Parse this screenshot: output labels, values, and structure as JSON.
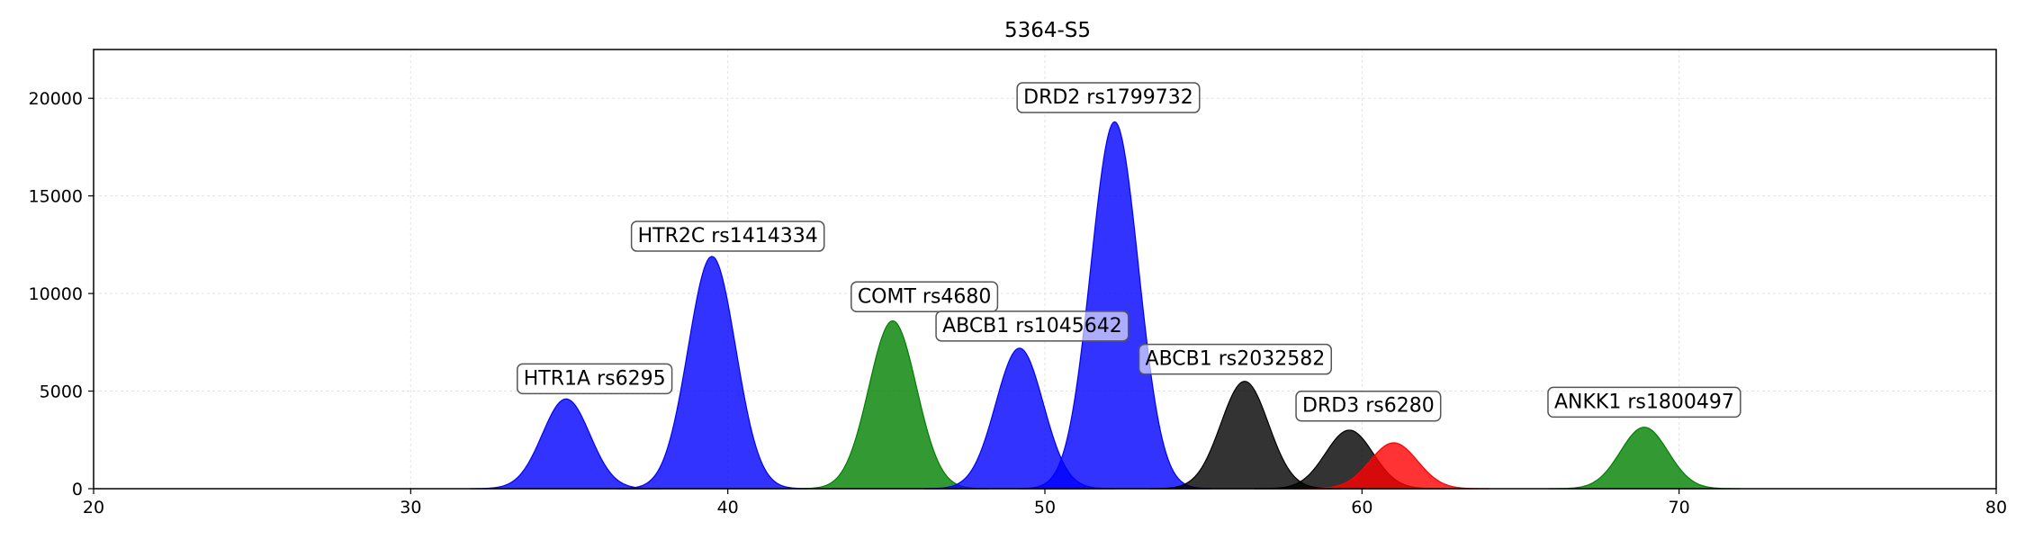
{
  "chart_data": {
    "type": "area",
    "title": "5364-S5",
    "xlabel": "",
    "ylabel": "",
    "xlim": [
      20,
      80
    ],
    "ylim": [
      0,
      22500
    ],
    "xticks": [
      20,
      30,
      40,
      50,
      60,
      70,
      80
    ],
    "yticks": [
      0,
      5000,
      10000,
      15000,
      20000
    ],
    "xtick_labels": [
      "20",
      "30",
      "40",
      "50",
      "60",
      "70",
      "80"
    ],
    "ytick_labels": [
      "0",
      "5000",
      "10000",
      "15000",
      "20000"
    ],
    "grid": true,
    "series": [
      {
        "name": "HTR1A rs6295",
        "color": "#0000ff",
        "peak_x": 34.9,
        "peak_y": 4600,
        "sigma": 0.75
      },
      {
        "name": "HTR2C rs1414334",
        "color": "#0000ff",
        "peak_x": 39.5,
        "peak_y": 11900,
        "sigma": 0.75
      },
      {
        "name": "COMT rs4680",
        "color": "#008000",
        "peak_x": 45.2,
        "peak_y": 8600,
        "sigma": 0.75
      },
      {
        "name": "ABCB1 rs1045642",
        "color": "#0000ff",
        "peak_x": 49.2,
        "peak_y": 7200,
        "sigma": 0.75
      },
      {
        "name": "DRD2 rs1799732",
        "color": "#0000ff",
        "peak_x": 52.2,
        "peak_y": 18800,
        "sigma": 0.75
      },
      {
        "name": "ABCB1 rs2032582",
        "color": "#000000",
        "peak_x": 56.3,
        "peak_y": 5500,
        "sigma": 0.75
      },
      {
        "name": "DRD3 rs6280",
        "color": "#000000",
        "peak_x": 59.6,
        "peak_y": 3000,
        "sigma": 0.75
      },
      {
        "name": "",
        "color": "#ff0000",
        "peak_x": 61.0,
        "peak_y": 2350,
        "sigma": 0.75
      },
      {
        "name": "ANKK1 rs1800497",
        "color": "#008000",
        "peak_x": 68.9,
        "peak_y": 3150,
        "sigma": 0.75
      }
    ],
    "annotations": [
      {
        "text": "HTR1A rs6295",
        "x": 35.8,
        "y": 5700
      },
      {
        "text": "HTR2C rs1414334",
        "x": 40.0,
        "y": 13000
      },
      {
        "text": "COMT rs4680",
        "x": 46.2,
        "y": 9900
      },
      {
        "text": "ABCB1 rs1045642",
        "x": 49.6,
        "y": 8400
      },
      {
        "text": "DRD2 rs1799732",
        "x": 52.0,
        "y": 20100
      },
      {
        "text": "ABCB1 rs2032582",
        "x": 56.0,
        "y": 6700
      },
      {
        "text": "DRD3 rs6280",
        "x": 60.2,
        "y": 4300
      },
      {
        "text": "ANKK1 rs1800497",
        "x": 68.9,
        "y": 4500
      }
    ]
  }
}
